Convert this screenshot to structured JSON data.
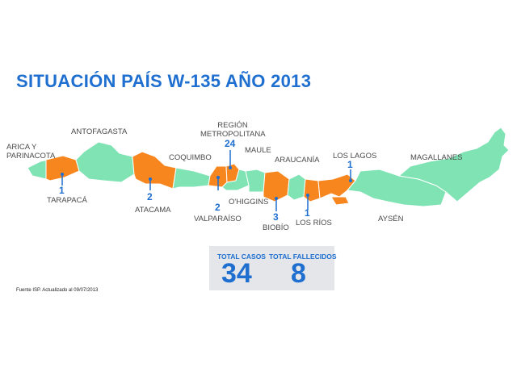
{
  "title": "SITUACIÓN PAÍS W-135 AÑO 2013",
  "colors": {
    "title": "#1e6fd0",
    "with_cases": "#f7861f",
    "without_cases": "#7fe3b4",
    "border": "#ffffff",
    "stats_background": "#e4e6ea"
  },
  "regions": [
    {
      "name": "ARICA Y PARINACOTA",
      "cases": null,
      "status": "without_cases"
    },
    {
      "name": "TARAPACÁ",
      "cases": "1",
      "status": "with_cases"
    },
    {
      "name": "ANTOFAGASTA",
      "cases": null,
      "status": "without_cases"
    },
    {
      "name": "ATACAMA",
      "cases": "2",
      "status": "with_cases"
    },
    {
      "name": "COQUIMBO",
      "cases": null,
      "status": "without_cases"
    },
    {
      "name": "VALPARAÍSO",
      "cases": "2",
      "status": "with_cases"
    },
    {
      "name": "REGIÓN METROPOLITANA",
      "cases": "24",
      "status": "with_cases"
    },
    {
      "name": "O'HIGGINS",
      "cases": null,
      "status": "without_cases"
    },
    {
      "name": "MAULE",
      "cases": null,
      "status": "without_cases"
    },
    {
      "name": "BIOBÍO",
      "cases": "3",
      "status": "with_cases"
    },
    {
      "name": "ARAUCANÍA",
      "cases": null,
      "status": "without_cases"
    },
    {
      "name": "LOS RÍOS",
      "cases": "1",
      "status": "with_cases"
    },
    {
      "name": "LOS LAGOS",
      "cases": "1",
      "status": "with_cases"
    },
    {
      "name": "AYSÉN",
      "cases": null,
      "status": "without_cases"
    },
    {
      "name": "MAGALLANES",
      "cases": null,
      "status": "without_cases"
    }
  ],
  "stats": {
    "total_cases_label": "TOTAL CASOS",
    "total_cases": "34",
    "total_deaths_label": "TOTAL FALLECIDOS",
    "total_deaths": "8"
  },
  "source": "Fuente ISP. Actualizado al 09/07/2013"
}
